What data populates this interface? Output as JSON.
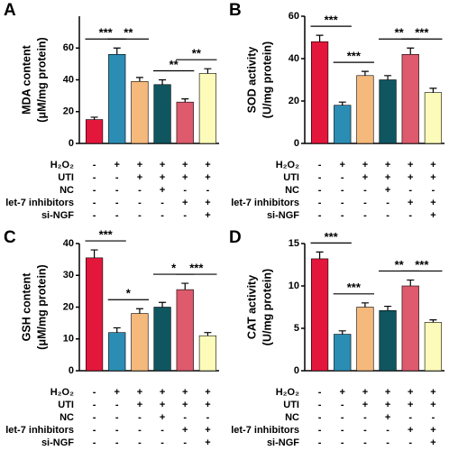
{
  "chart_data": [
    {
      "type": "bar",
      "label": "A",
      "ylabel": [
        "MDA content",
        "(μM/mg protein)"
      ],
      "categories": [
        null,
        null,
        null,
        null,
        null,
        null
      ],
      "values": [
        15,
        56,
        39,
        37,
        26,
        44
      ],
      "errors": [
        1.5,
        4,
        2.5,
        3,
        2,
        3
      ],
      "colors": [
        "#e3173c",
        "#2b8db4",
        "#f5b97c",
        "#0f5661",
        "#de5a6d",
        "#fdfbb9"
      ],
      "ylim": [
        0,
        80
      ],
      "yticks": [
        0,
        20,
        40,
        60
      ],
      "significance": [
        {
          "from": 0,
          "to": 1,
          "label": "***"
        },
        {
          "from": 1,
          "to": 2,
          "label": "**"
        },
        {
          "from": 3,
          "to": 4,
          "label": "**"
        },
        {
          "from": 4,
          "to": 5,
          "label": "**"
        }
      ]
    },
    {
      "type": "bar",
      "label": "B",
      "ylabel": [
        "SOD activity",
        "(U/mg protein)"
      ],
      "categories": [
        null,
        null,
        null,
        null,
        null,
        null
      ],
      "values": [
        48,
        18,
        32,
        30,
        42,
        24
      ],
      "errors": [
        3,
        1.5,
        2,
        2,
        3,
        2
      ],
      "colors": [
        "#e3173c",
        "#2b8db4",
        "#f5b97c",
        "#0f5661",
        "#de5a6d",
        "#fdfbb9"
      ],
      "ylim": [
        0,
        60
      ],
      "yticks": [
        0,
        20,
        40,
        60
      ],
      "significance": [
        {
          "from": 0,
          "to": 1,
          "label": "***"
        },
        {
          "from": 1,
          "to": 2,
          "label": "***"
        },
        {
          "from": 3,
          "to": 4,
          "label": "**"
        },
        {
          "from": 4,
          "to": 5,
          "label": "***"
        }
      ]
    },
    {
      "type": "bar",
      "label": "C",
      "ylabel": [
        "GSH content",
        "(μM/mg protein)"
      ],
      "categories": [
        null,
        null,
        null,
        null,
        null,
        null
      ],
      "values": [
        35.5,
        12,
        18,
        20,
        25.5,
        11
      ],
      "errors": [
        2.5,
        1.5,
        1.5,
        1.5,
        2,
        1
      ],
      "colors": [
        "#e3173c",
        "#2b8db4",
        "#f5b97c",
        "#0f5661",
        "#de5a6d",
        "#fdfbb9"
      ],
      "ylim": [
        0,
        40
      ],
      "yticks": [
        0,
        10,
        20,
        30,
        40
      ],
      "significance": [
        {
          "from": 0,
          "to": 1,
          "label": "***"
        },
        {
          "from": 1,
          "to": 2,
          "label": "*"
        },
        {
          "from": 3,
          "to": 4,
          "label": "*"
        },
        {
          "from": 4,
          "to": 5,
          "label": "***"
        }
      ]
    },
    {
      "type": "bar",
      "label": "D",
      "ylabel": [
        "CAT activity",
        "(U/mg protein)"
      ],
      "categories": [
        null,
        null,
        null,
        null,
        null,
        null
      ],
      "values": [
        13.2,
        4.3,
        7.5,
        7.1,
        10,
        5.7
      ],
      "errors": [
        0.8,
        0.4,
        0.5,
        0.5,
        0.7,
        0.3
      ],
      "colors": [
        "#e3173c",
        "#2b8db4",
        "#f5b97c",
        "#0f5661",
        "#de5a6d",
        "#fdfbb9"
      ],
      "ylim": [
        0,
        15
      ],
      "yticks": [
        0,
        5,
        10,
        15
      ],
      "significance": [
        {
          "from": 0,
          "to": 1,
          "label": "***"
        },
        {
          "from": 1,
          "to": 2,
          "label": "***"
        },
        {
          "from": 3,
          "to": 4,
          "label": "**"
        },
        {
          "from": 4,
          "to": 5,
          "label": "***"
        }
      ]
    }
  ],
  "treatments": [
    {
      "name": "H₂O₂",
      "signs": [
        "-",
        "+",
        "+",
        "+",
        "+",
        "+"
      ]
    },
    {
      "name": "UTI",
      "signs": [
        "-",
        "-",
        "+",
        "+",
        "+",
        "+"
      ]
    },
    {
      "name": "NC",
      "signs": [
        "-",
        "-",
        "-",
        "+",
        "-",
        "-"
      ]
    },
    {
      "name": "let-7 inhibitors",
      "signs": [
        "-",
        "-",
        "-",
        "-",
        "+",
        "+"
      ]
    },
    {
      "name": "si-NGF",
      "signs": [
        "-",
        "-",
        "-",
        "-",
        "-",
        "+"
      ]
    }
  ]
}
